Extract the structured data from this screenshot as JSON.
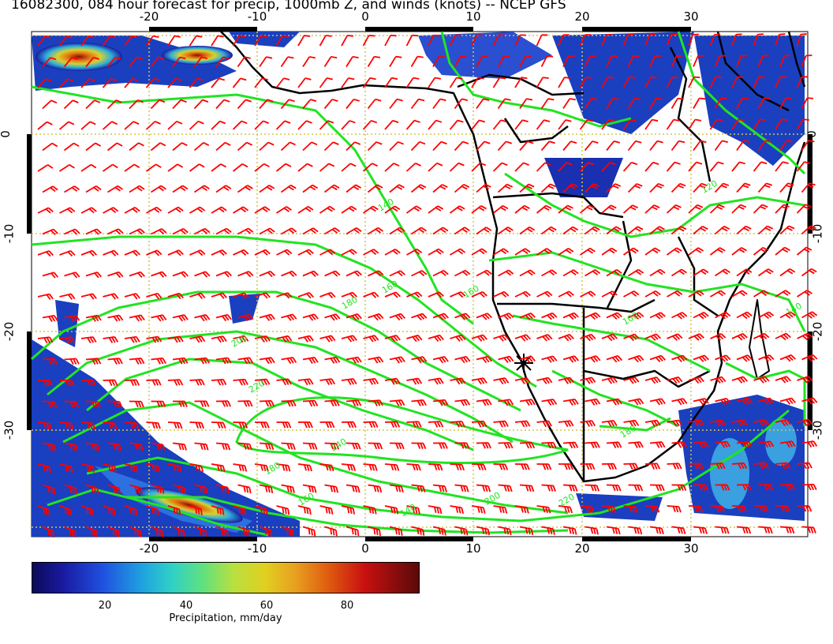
{
  "title": "16082300, 084 hour forecast for precip, 1000mb Z, and winds (knots) -- NCEP GFS",
  "lon_labels": [
    "-20",
    "-10",
    "0",
    "10",
    "20",
    "30"
  ],
  "lat_labels": [
    "0",
    "-10",
    "-20",
    "-30"
  ],
  "contour_labels": [
    "140",
    "160",
    "180",
    "200",
    "220",
    "240",
    "180",
    "160",
    "140",
    "200",
    "220",
    "180",
    "160",
    "140",
    "120",
    "100"
  ],
  "colorbar": {
    "ticks": [
      "20",
      "40",
      "60",
      "80"
    ],
    "label": "Precipitation, mm/day"
  },
  "colors": {
    "contour": "#22e322",
    "barb": "#ff0000",
    "coast": "#000000",
    "grid": "#d4c34a",
    "precip_low": "#1a1aa0",
    "precip_high": "#c81010"
  },
  "icons": [
    "wind-barb-icon",
    "storm-cross-icon"
  ]
}
